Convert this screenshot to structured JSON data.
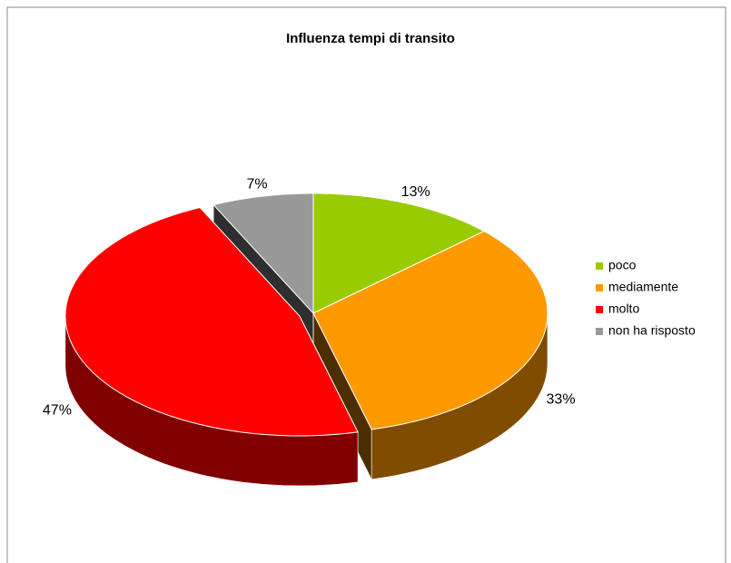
{
  "chart_data": {
    "type": "pie3d",
    "title": "Influenza tempi di transito",
    "categories": [
      "poco",
      "mediamente",
      "molto",
      "non ha risposto"
    ],
    "values": [
      13,
      33,
      47,
      7
    ],
    "value_labels": [
      "13%",
      "33%",
      "47%",
      "7%"
    ],
    "colors": [
      "#99cc00",
      "#ff9900",
      "#ff0000",
      "#999999"
    ],
    "legend": "right"
  }
}
